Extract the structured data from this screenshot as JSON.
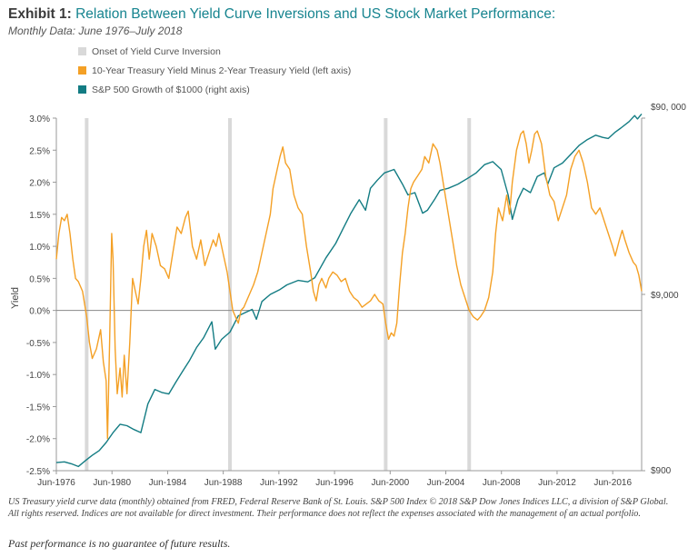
{
  "header": {
    "exhibit": "Exhibit 1:",
    "title": "Relation Between Yield Curve Inversions and US Stock Market Performance:",
    "subtitle": "Monthly Data: June 1976–July 2018"
  },
  "legend": [
    {
      "label": "Onset of Yield Curve Inversion",
      "color": "#d9d9d9"
    },
    {
      "label": "10-Year Treasury Yield Minus 2-Year Treasury Yield (left axis)",
      "color": "#f4a025"
    },
    {
      "label": "S&P 500 Growth of $1000 (right axis)",
      "color": "#137c83"
    }
  ],
  "chart_data": {
    "type": "line",
    "ylabel": "Yield",
    "left_axis": {
      "min": -2.5,
      "max": 3.0,
      "ticks": [
        "3.0%",
        "2.5%",
        "2.0%",
        "1.5%",
        "1.0%",
        "0.5%",
        "0.0%",
        "-0.5%",
        "-1.0%",
        "-1.5%",
        "-2.0%",
        "-2.5%"
      ]
    },
    "right_axis": {
      "scale": "log",
      "min": 900,
      "max": 90000,
      "ticks": [
        "$90, 000",
        "$9,000",
        "$900"
      ]
    },
    "x_ticks": [
      "Jun-1976",
      "Jun-1980",
      "Jun-1984",
      "Jun-1988",
      "Jun-1992",
      "Jun-1996",
      "Jun-2000",
      "Jun-2004",
      "Jun-2008",
      "Jun-2012",
      "Jun-2016"
    ],
    "x_range": [
      1976.42,
      2018.5
    ],
    "inversion_onsets": [
      1978.6,
      1988.9,
      2000.1,
      2006.1
    ],
    "series": [
      {
        "name": "10-Year Treasury Yield Minus 2-Year Treasury Yield (left axis)",
        "color": "#f4a025",
        "points": [
          [
            1976.42,
            0.8
          ],
          [
            1976.6,
            1.2
          ],
          [
            1976.8,
            1.45
          ],
          [
            1977.0,
            1.4
          ],
          [
            1977.2,
            1.5
          ],
          [
            1977.4,
            1.2
          ],
          [
            1977.6,
            0.8
          ],
          [
            1977.8,
            0.5
          ],
          [
            1978.0,
            0.45
          ],
          [
            1978.3,
            0.3
          ],
          [
            1978.6,
            -0.1
          ],
          [
            1978.8,
            -0.5
          ],
          [
            1979.0,
            -0.75
          ],
          [
            1979.3,
            -0.6
          ],
          [
            1979.6,
            -0.3
          ],
          [
            1979.8,
            -0.8
          ],
          [
            1980.0,
            -1.1
          ],
          [
            1980.1,
            -2.0
          ],
          [
            1980.25,
            -0.5
          ],
          [
            1980.4,
            1.2
          ],
          [
            1980.5,
            0.8
          ],
          [
            1980.65,
            -0.6
          ],
          [
            1980.8,
            -1.3
          ],
          [
            1981.0,
            -0.9
          ],
          [
            1981.15,
            -1.35
          ],
          [
            1981.3,
            -0.7
          ],
          [
            1981.5,
            -1.3
          ],
          [
            1981.7,
            -0.5
          ],
          [
            1981.9,
            0.5
          ],
          [
            1982.1,
            0.3
          ],
          [
            1982.3,
            0.1
          ],
          [
            1982.5,
            0.5
          ],
          [
            1982.7,
            1.0
          ],
          [
            1982.9,
            1.25
          ],
          [
            1983.1,
            0.8
          ],
          [
            1983.3,
            1.2
          ],
          [
            1983.6,
            1.0
          ],
          [
            1983.9,
            0.7
          ],
          [
            1984.2,
            0.65
          ],
          [
            1984.5,
            0.5
          ],
          [
            1984.8,
            0.9
          ],
          [
            1985.1,
            1.3
          ],
          [
            1985.4,
            1.2
          ],
          [
            1985.7,
            1.45
          ],
          [
            1985.9,
            1.55
          ],
          [
            1986.2,
            1.0
          ],
          [
            1986.5,
            0.8
          ],
          [
            1986.8,
            1.1
          ],
          [
            1987.1,
            0.7
          ],
          [
            1987.4,
            0.9
          ],
          [
            1987.7,
            1.1
          ],
          [
            1987.9,
            1.0
          ],
          [
            1988.1,
            1.2
          ],
          [
            1988.4,
            0.9
          ],
          [
            1988.7,
            0.6
          ],
          [
            1988.9,
            0.3
          ],
          [
            1989.1,
            0.0
          ],
          [
            1989.3,
            -0.1
          ],
          [
            1989.5,
            -0.2
          ],
          [
            1989.7,
            0.0
          ],
          [
            1989.9,
            0.05
          ],
          [
            1990.2,
            0.2
          ],
          [
            1990.6,
            0.4
          ],
          [
            1990.9,
            0.6
          ],
          [
            1991.2,
            0.9
          ],
          [
            1991.5,
            1.2
          ],
          [
            1991.8,
            1.5
          ],
          [
            1992.0,
            1.9
          ],
          [
            1992.3,
            2.2
          ],
          [
            1992.5,
            2.4
          ],
          [
            1992.7,
            2.55
          ],
          [
            1992.9,
            2.3
          ],
          [
            1993.2,
            2.2
          ],
          [
            1993.5,
            1.8
          ],
          [
            1993.8,
            1.6
          ],
          [
            1994.1,
            1.5
          ],
          [
            1994.4,
            1.0
          ],
          [
            1994.7,
            0.6
          ],
          [
            1994.9,
            0.3
          ],
          [
            1995.1,
            0.15
          ],
          [
            1995.3,
            0.4
          ],
          [
            1995.5,
            0.5
          ],
          [
            1995.8,
            0.35
          ],
          [
            1996.0,
            0.5
          ],
          [
            1996.3,
            0.6
          ],
          [
            1996.6,
            0.55
          ],
          [
            1996.9,
            0.45
          ],
          [
            1997.2,
            0.5
          ],
          [
            1997.5,
            0.3
          ],
          [
            1997.8,
            0.2
          ],
          [
            1998.1,
            0.15
          ],
          [
            1998.4,
            0.05
          ],
          [
            1998.7,
            0.1
          ],
          [
            1999.0,
            0.15
          ],
          [
            1999.3,
            0.25
          ],
          [
            1999.6,
            0.15
          ],
          [
            1999.9,
            0.1
          ],
          [
            2000.1,
            -0.2
          ],
          [
            2000.3,
            -0.45
          ],
          [
            2000.5,
            -0.35
          ],
          [
            2000.7,
            -0.4
          ],
          [
            2000.9,
            -0.2
          ],
          [
            2001.1,
            0.4
          ],
          [
            2001.3,
            0.9
          ],
          [
            2001.5,
            1.2
          ],
          [
            2001.7,
            1.6
          ],
          [
            2001.9,
            1.9
          ],
          [
            2002.1,
            2.0
          ],
          [
            2002.4,
            2.1
          ],
          [
            2002.7,
            2.2
          ],
          [
            2002.9,
            2.4
          ],
          [
            2003.2,
            2.3
          ],
          [
            2003.5,
            2.6
          ],
          [
            2003.8,
            2.5
          ],
          [
            2004.0,
            2.3
          ],
          [
            2004.3,
            1.9
          ],
          [
            2004.6,
            1.5
          ],
          [
            2004.9,
            1.1
          ],
          [
            2005.2,
            0.7
          ],
          [
            2005.5,
            0.4
          ],
          [
            2005.8,
            0.2
          ],
          [
            2006.1,
            0.0
          ],
          [
            2006.4,
            -0.1
          ],
          [
            2006.7,
            -0.15
          ],
          [
            2006.9,
            -0.1
          ],
          [
            2007.2,
            0.0
          ],
          [
            2007.5,
            0.2
          ],
          [
            2007.8,
            0.6
          ],
          [
            2008.0,
            1.2
          ],
          [
            2008.2,
            1.6
          ],
          [
            2008.5,
            1.4
          ],
          [
            2008.8,
            1.8
          ],
          [
            2009.0,
            1.5
          ],
          [
            2009.2,
            2.0
          ],
          [
            2009.5,
            2.5
          ],
          [
            2009.8,
            2.75
          ],
          [
            2010.0,
            2.8
          ],
          [
            2010.2,
            2.6
          ],
          [
            2010.4,
            2.3
          ],
          [
            2010.6,
            2.5
          ],
          [
            2010.8,
            2.75
          ],
          [
            2011.0,
            2.8
          ],
          [
            2011.3,
            2.6
          ],
          [
            2011.6,
            2.1
          ],
          [
            2011.9,
            1.8
          ],
          [
            2012.2,
            1.7
          ],
          [
            2012.5,
            1.4
          ],
          [
            2012.8,
            1.6
          ],
          [
            2013.1,
            1.8
          ],
          [
            2013.4,
            2.2
          ],
          [
            2013.7,
            2.4
          ],
          [
            2014.0,
            2.5
          ],
          [
            2014.3,
            2.3
          ],
          [
            2014.6,
            2.0
          ],
          [
            2014.9,
            1.6
          ],
          [
            2015.2,
            1.5
          ],
          [
            2015.5,
            1.6
          ],
          [
            2015.8,
            1.4
          ],
          [
            2016.1,
            1.2
          ],
          [
            2016.4,
            1.0
          ],
          [
            2016.6,
            0.85
          ],
          [
            2016.9,
            1.1
          ],
          [
            2017.1,
            1.25
          ],
          [
            2017.3,
            1.1
          ],
          [
            2017.6,
            0.9
          ],
          [
            2017.9,
            0.75
          ],
          [
            2018.1,
            0.7
          ],
          [
            2018.3,
            0.55
          ],
          [
            2018.5,
            0.3
          ]
        ]
      },
      {
        "name": "S&P 500 Growth of $1000 (right axis)",
        "color": "#137c83",
        "points": [
          [
            1976.42,
            1000
          ],
          [
            1977.0,
            1010
          ],
          [
            1977.5,
            985
          ],
          [
            1978.0,
            950
          ],
          [
            1978.6,
            1040
          ],
          [
            1979.0,
            1100
          ],
          [
            1979.5,
            1170
          ],
          [
            1980.0,
            1300
          ],
          [
            1980.5,
            1480
          ],
          [
            1981.0,
            1650
          ],
          [
            1981.5,
            1620
          ],
          [
            1982.0,
            1540
          ],
          [
            1982.5,
            1480
          ],
          [
            1983.0,
            2150
          ],
          [
            1983.5,
            2600
          ],
          [
            1984.0,
            2500
          ],
          [
            1984.5,
            2450
          ],
          [
            1985.0,
            2850
          ],
          [
            1985.5,
            3300
          ],
          [
            1986.0,
            3800
          ],
          [
            1986.5,
            4500
          ],
          [
            1987.0,
            5100
          ],
          [
            1987.6,
            6300
          ],
          [
            1987.85,
            4400
          ],
          [
            1988.3,
            5000
          ],
          [
            1988.9,
            5500
          ],
          [
            1989.5,
            6800
          ],
          [
            1990.0,
            7100
          ],
          [
            1990.5,
            7400
          ],
          [
            1990.8,
            6500
          ],
          [
            1991.2,
            8200
          ],
          [
            1991.8,
            9000
          ],
          [
            1992.5,
            9600
          ],
          [
            1993.0,
            10200
          ],
          [
            1993.8,
            10800
          ],
          [
            1994.5,
            10600
          ],
          [
            1995.0,
            11200
          ],
          [
            1995.8,
            14500
          ],
          [
            1996.5,
            17500
          ],
          [
            1997.0,
            21000
          ],
          [
            1997.6,
            26000
          ],
          [
            1998.2,
            31000
          ],
          [
            1998.65,
            27000
          ],
          [
            1999.0,
            36000
          ],
          [
            1999.5,
            40000
          ],
          [
            2000.0,
            44000
          ],
          [
            2000.7,
            46000
          ],
          [
            2001.3,
            38000
          ],
          [
            2001.7,
            33000
          ],
          [
            2002.2,
            34000
          ],
          [
            2002.75,
            26000
          ],
          [
            2003.1,
            27000
          ],
          [
            2003.6,
            31000
          ],
          [
            2004.0,
            35000
          ],
          [
            2004.6,
            36000
          ],
          [
            2005.3,
            38000
          ],
          [
            2006.0,
            41000
          ],
          [
            2006.6,
            44000
          ],
          [
            2007.2,
            49000
          ],
          [
            2007.8,
            51000
          ],
          [
            2008.4,
            46000
          ],
          [
            2008.9,
            33000
          ],
          [
            2009.2,
            24000
          ],
          [
            2009.6,
            31000
          ],
          [
            2010.0,
            36000
          ],
          [
            2010.5,
            34000
          ],
          [
            2011.0,
            42000
          ],
          [
            2011.5,
            44000
          ],
          [
            2011.75,
            38000
          ],
          [
            2012.2,
            47000
          ],
          [
            2012.8,
            50000
          ],
          [
            2013.4,
            56000
          ],
          [
            2014.0,
            63000
          ],
          [
            2014.6,
            68000
          ],
          [
            2015.2,
            72000
          ],
          [
            2015.7,
            70000
          ],
          [
            2016.1,
            69000
          ],
          [
            2016.6,
            75000
          ],
          [
            2017.0,
            79000
          ],
          [
            2017.6,
            86000
          ],
          [
            2018.0,
            93000
          ],
          [
            2018.2,
            89000
          ],
          [
            2018.5,
            95000
          ]
        ]
      }
    ]
  },
  "footnote": "US Treasury yield curve data (monthly) obtained from FRED, Federal Reserve Bank of St. Louis. S&P 500 Index © 2018 S&P Dow Jones Indices LLC, a division of S&P Global. All rights reserved. Indices are not available for direct investment. Their performance does not reflect the expenses associated with the management of an actual portfolio.",
  "disclaimer": "Past performance is no guarantee of future results."
}
